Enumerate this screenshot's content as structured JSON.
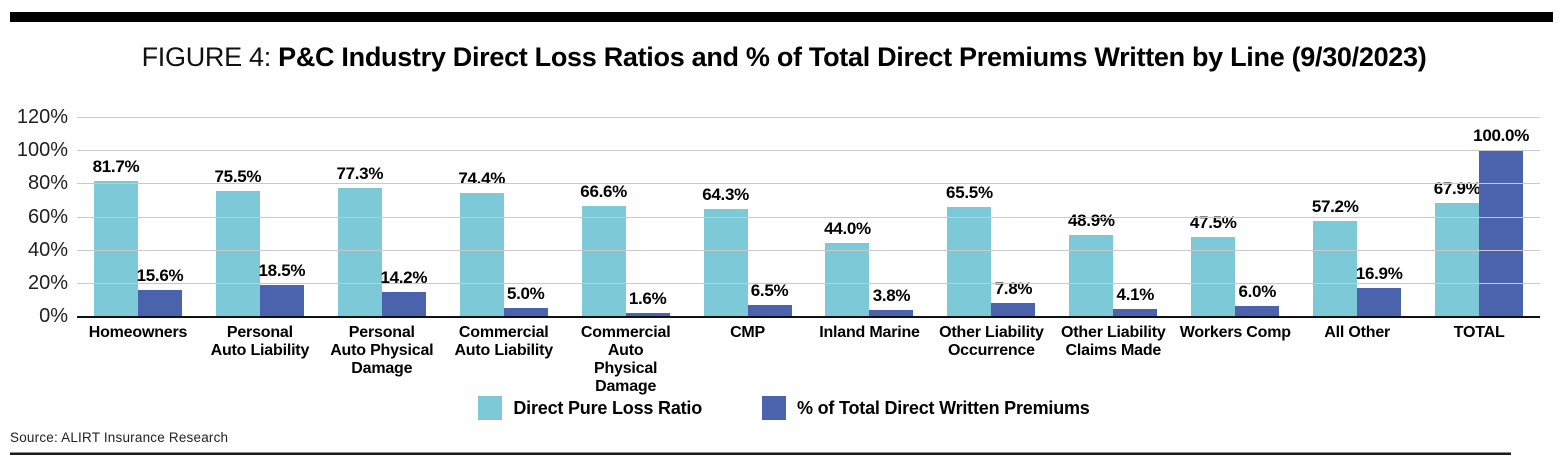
{
  "page": {
    "title_prefix": "FIGURE 4: ",
    "title_main": "P&C Industry Direct Loss Ratios and % of Total Direct Premiums Written by Line (9/30/2023)",
    "source": "Source: ALIRT Insurance Research"
  },
  "colors": {
    "loss_ratio_bar": "#7ec9d8",
    "premiums_bar": "#4a63ac",
    "gridline": "#c9c9c9",
    "baseline": "#111111",
    "top_bar": "#000000"
  },
  "chart_data": {
    "type": "bar",
    "title": "P&C Industry Direct Loss Ratios and % of Total Direct Premiums Written by Line (9/30/2023)",
    "categories": [
      "Homeowners",
      "Personal\nAuto Liability",
      "Personal\nAuto Physical\nDamage",
      "Commercial\nAuto Liability",
      "Commercial Auto\nPhysical Damage",
      "CMP",
      "Inland Marine",
      "Other Liability\nOccurrence",
      "Other Liability\nClaims Made",
      "Workers Comp",
      "All Other",
      "TOTAL"
    ],
    "series": [
      {
        "name": "Direct Pure Loss Ratio",
        "color": "#7ec9d8",
        "values": [
          81.7,
          75.5,
          77.3,
          74.4,
          66.6,
          64.3,
          44.0,
          65.5,
          48.9,
          47.5,
          57.2,
          67.9
        ]
      },
      {
        "name": "% of Total Direct Written Premiums",
        "color": "#4a63ac",
        "values": [
          15.6,
          18.5,
          14.2,
          5.0,
          1.6,
          6.5,
          3.8,
          7.8,
          4.1,
          6.0,
          16.9,
          100.0
        ]
      }
    ],
    "yticks": [
      "0%",
      "20%",
      "40%",
      "60%",
      "80%",
      "100%",
      "120%"
    ],
    "ytick_values": [
      0,
      20,
      40,
      60,
      80,
      100,
      120
    ],
    "ylim": [
      0,
      120
    ],
    "grid": true,
    "legend_position": "bottom",
    "value_labels": "one_decimal_percent"
  }
}
